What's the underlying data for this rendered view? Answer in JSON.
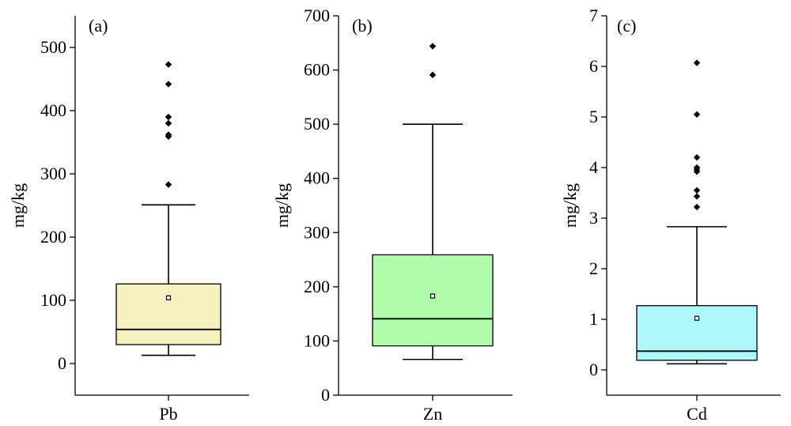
{
  "chart_data": [
    {
      "type": "box",
      "panel_label": "(a)",
      "xlabel": "Pb",
      "ylabel": "mg/kg",
      "ylim": [
        -50,
        550
      ],
      "yticks": [
        0,
        100,
        200,
        300,
        400,
        500
      ],
      "box_color": "#f5f2c0",
      "box": {
        "whisker_low": 13,
        "q1": 30,
        "median": 54,
        "q3": 126,
        "whisker_high": 251,
        "mean": 104
      },
      "outliers": [
        283,
        359,
        362,
        380,
        390,
        442,
        473
      ]
    },
    {
      "type": "box",
      "panel_label": "(b)",
      "xlabel": "Zn",
      "ylabel": "mg/kg",
      "ylim": [
        0,
        700
      ],
      "yticks": [
        0,
        100,
        200,
        300,
        400,
        500,
        600,
        700
      ],
      "box_color": "#b0fcaa",
      "box": {
        "whisker_low": 66,
        "q1": 91,
        "median": 141,
        "q3": 259,
        "whisker_high": 500,
        "mean": 183
      },
      "outliers": [
        591,
        644
      ]
    },
    {
      "type": "box",
      "panel_label": "(c)",
      "xlabel": "Cd",
      "ylabel": "mg/kg",
      "ylim": [
        -0.5,
        7
      ],
      "yticks": [
        0,
        1,
        2,
        3,
        4,
        5,
        6,
        7
      ],
      "box_color": "#aef8fc",
      "box": {
        "whisker_low": 0.12,
        "q1": 0.19,
        "median": 0.37,
        "q3": 1.27,
        "whisker_high": 2.83,
        "mean": 1.02
      },
      "outliers": [
        3.22,
        3.43,
        3.55,
        3.92,
        3.96,
        4.0,
        4.2,
        5.05,
        6.07
      ]
    }
  ]
}
